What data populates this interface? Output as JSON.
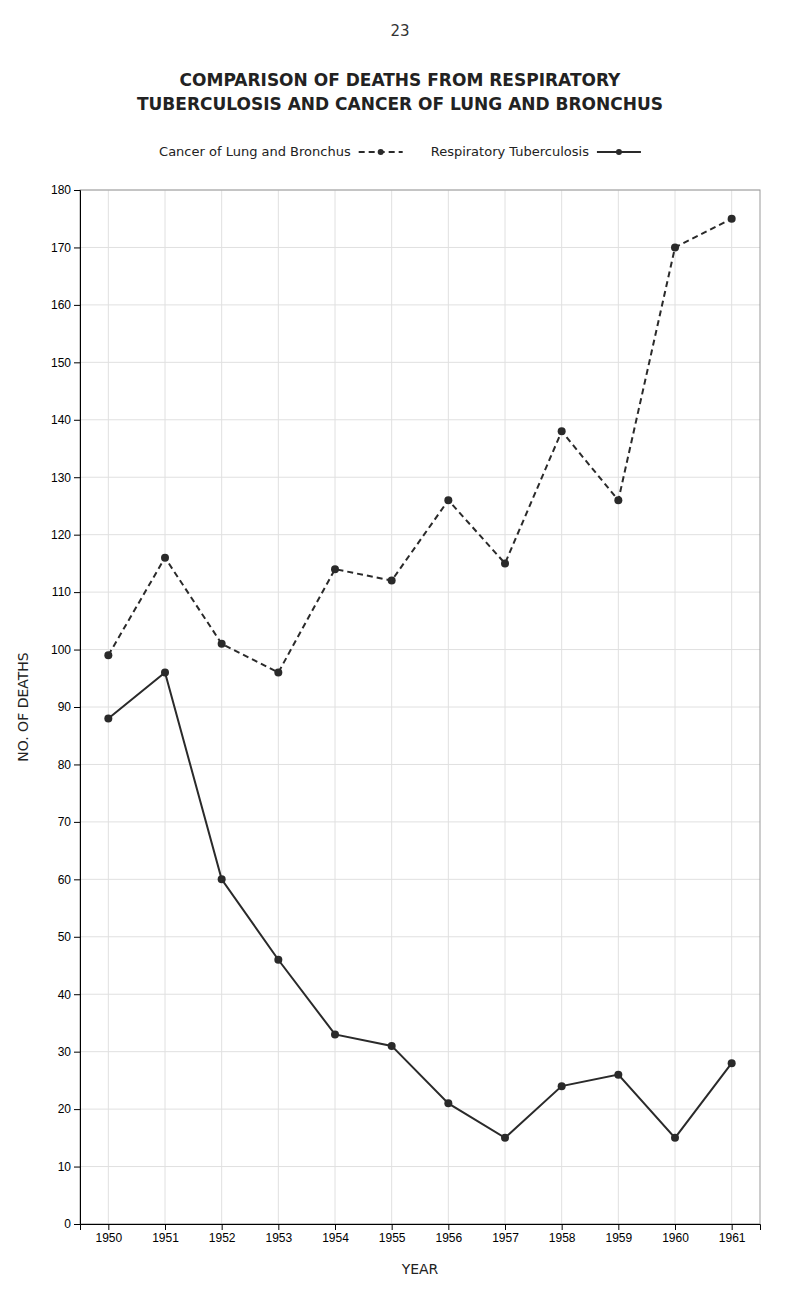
{
  "chart_data": {
    "type": "line",
    "annotations": [
      "23"
    ],
    "title": "COMPARISON OF DEATHS FROM RESPIRATORY",
    "subtitle": "TUBERCULOSIS AND CANCER OF LUNG AND BRONCHUS",
    "xlabel": "YEAR",
    "ylabel": "NO. OF DEATHS",
    "x": [
      1950,
      1951,
      1952,
      1953,
      1954,
      1955,
      1956,
      1957,
      1958,
      1959,
      1960,
      1961
    ],
    "series": [
      {
        "name": "Cancer of Lung and Bronchus",
        "color": "#2a2a2a",
        "line_style": "dashed",
        "marker": "circle",
        "values": [
          99,
          116,
          101,
          96,
          114,
          112,
          126,
          115,
          138,
          126,
          170,
          175
        ]
      },
      {
        "name": "Respiratory Tuberculosis",
        "color": "#2a2a2a",
        "line_style": "solid",
        "marker": "circle",
        "values": [
          88,
          96,
          60,
          46,
          33,
          31,
          21,
          15,
          24,
          26,
          15,
          28
        ]
      }
    ],
    "xlim": [
      1949.5,
      1961.5
    ],
    "xticks": [
      1950,
      1951,
      1952,
      1953,
      1954,
      1955,
      1956,
      1957,
      1958,
      1959,
      1960,
      1961
    ],
    "ylim": [
      0,
      180
    ],
    "yticks": [
      0,
      10,
      20,
      30,
      40,
      50,
      60,
      70,
      80,
      90,
      100,
      110,
      120,
      130,
      140,
      150,
      160,
      170,
      180
    ],
    "grid": true,
    "legend": "top"
  }
}
